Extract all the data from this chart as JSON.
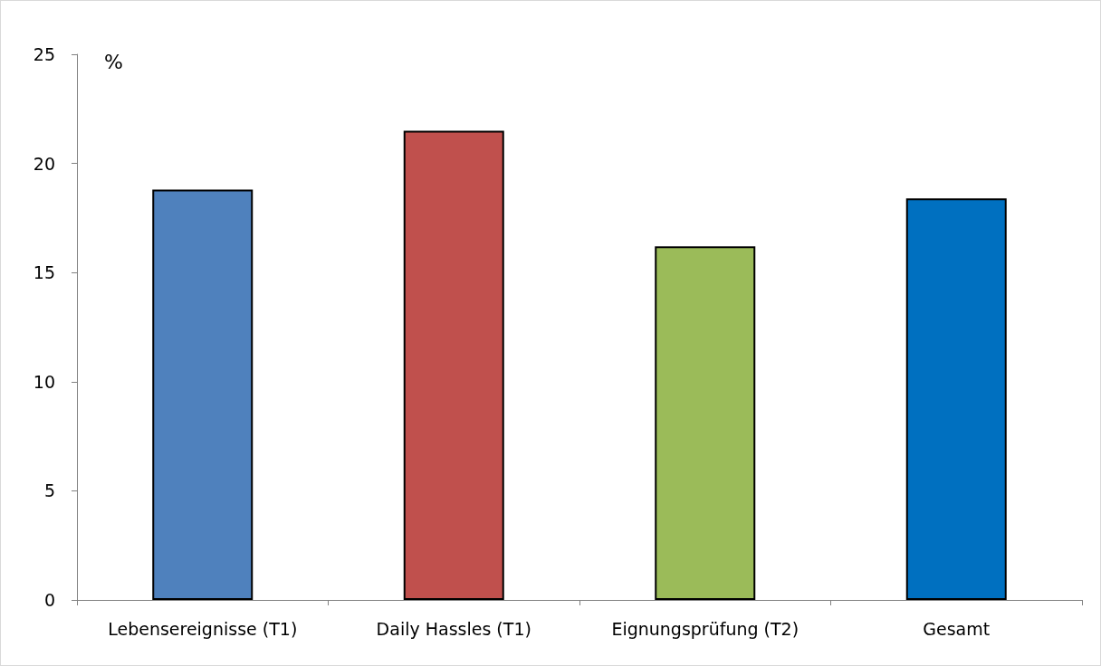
{
  "chart_data": {
    "type": "bar",
    "ylabel": "%",
    "categories": [
      "Lebensereignisse (T1)",
      "Daily Hassles (T1)",
      "Eignungsprüfung (T2)",
      "Gesamt"
    ],
    "values": [
      18.8,
      21.5,
      16.2,
      18.4
    ],
    "colors": [
      "#4f81bd",
      "#c0504d",
      "#9bbb59",
      "#0070c0"
    ],
    "ylim": [
      0,
      25
    ],
    "yticks": [
      0,
      5,
      10,
      15,
      20,
      25
    ]
  }
}
